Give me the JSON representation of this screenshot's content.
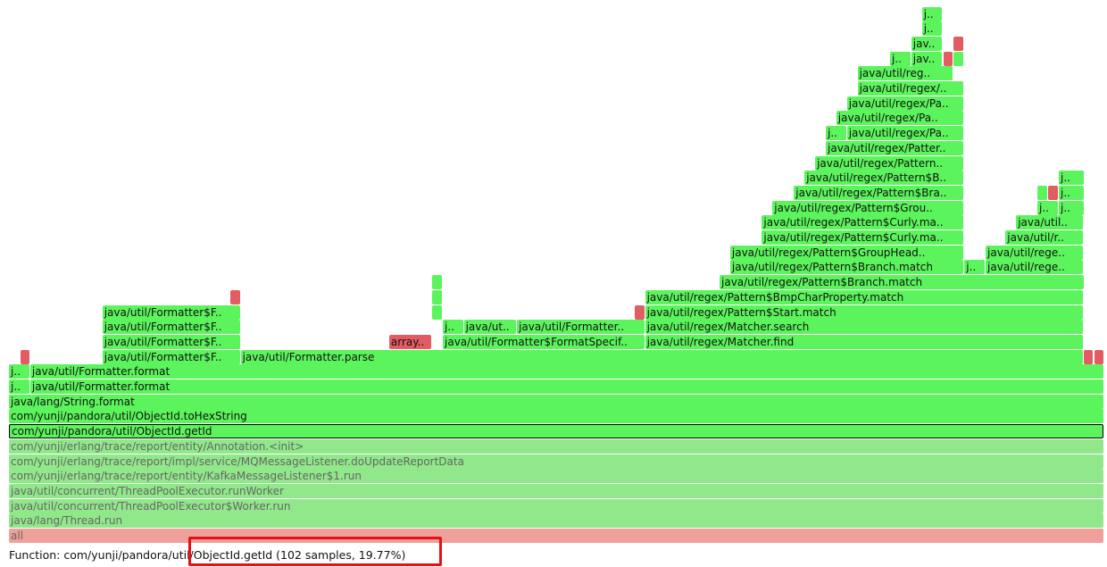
{
  "palette": {
    "green": "#5cf45c",
    "red": "#e35b63",
    "light_green": "#90e88a",
    "salmon": "#f0a09a",
    "dim_text": "#666666",
    "highlight_border": "#e81010"
  },
  "frames": [
    {
      "label": "all",
      "depth": 0,
      "start": 0.0,
      "end": 1.0,
      "color": "salmon",
      "dim": true
    },
    {
      "label": "java/lang/Thread.run",
      "depth": 1,
      "start": 0.0,
      "end": 1.0,
      "color": "light_green",
      "dim": true
    },
    {
      "label": "java/util/concurrent/ThreadPoolExecutor$Worker.run",
      "depth": 2,
      "start": 0.0,
      "end": 1.0,
      "color": "light_green",
      "dim": true
    },
    {
      "label": "java/util/concurrent/ThreadPoolExecutor.runWorker",
      "depth": 3,
      "start": 0.0,
      "end": 1.0,
      "color": "light_green",
      "dim": true
    },
    {
      "label": "com/yunji/erlang/trace/report/entity/KafkaMessageListener$1.run",
      "depth": 4,
      "start": 0.0,
      "end": 1.0,
      "color": "light_green",
      "dim": true
    },
    {
      "label": "com/yunji/erlang/trace/report/impl/service/MQMessageListener.doUpdateReportData",
      "depth": 5,
      "start": 0.0,
      "end": 1.0,
      "color": "light_green",
      "dim": true
    },
    {
      "label": "com/yunji/erlang/trace/report/entity/Annotation.<init>",
      "depth": 6,
      "start": 0.0,
      "end": 1.0,
      "color": "light_green",
      "dim": true
    },
    {
      "label": "com/yunji/pandora/util/ObjectId.getId",
      "depth": 7,
      "start": 0.0,
      "end": 1.0,
      "color": "green",
      "selected": true
    },
    {
      "label": "com/yunji/pandora/util/ObjectId.toHexString",
      "depth": 8,
      "start": 0.0,
      "end": 1.0,
      "color": "green"
    },
    {
      "label": "java/lang/String.format",
      "depth": 9,
      "start": 0.0,
      "end": 1.0,
      "color": "green"
    },
    {
      "label": "j..",
      "depth": 10,
      "start": 0.0,
      "end": 0.0195,
      "color": "green"
    },
    {
      "label": "java/util/Formatter.format",
      "depth": 10,
      "start": 0.0195,
      "end": 1.0,
      "color": "green"
    },
    {
      "label": "j..",
      "depth": 11,
      "start": 0.0,
      "end": 0.0195,
      "color": "green"
    },
    {
      "label": "java/util/Formatter.format",
      "depth": 11,
      "start": 0.0195,
      "end": 1.0,
      "color": "green"
    },
    {
      "label": "",
      "depth": 12,
      "start": 0.0105,
      "end": 0.0195,
      "color": "red"
    },
    {
      "label": "java/util/Formatter$F..",
      "depth": 12,
      "start": 0.0853,
      "end": 0.2116,
      "color": "green"
    },
    {
      "label": "java/util/Formatter.parse",
      "depth": 12,
      "start": 0.2116,
      "end": 0.9816,
      "color": "green"
    },
    {
      "label": "",
      "depth": 12,
      "start": 0.9816,
      "end": 0.9906,
      "color": "red"
    },
    {
      "label": "",
      "depth": 12,
      "start": 0.9906,
      "end": 1.0,
      "color": "red"
    },
    {
      "label": "java/util/Formatter$F..",
      "depth": 13,
      "start": 0.0853,
      "end": 0.2116,
      "color": "green"
    },
    {
      "label": "array..",
      "depth": 13,
      "start": 0.3471,
      "end": 0.3864,
      "color": "red"
    },
    {
      "label": "java/util/Formatter$FormatSpecif..",
      "depth": 13,
      "start": 0.3961,
      "end": 0.5808,
      "color": "green"
    },
    {
      "label": "java/util/regex/Matcher.find",
      "depth": 13,
      "start": 0.5808,
      "end": 0.9816,
      "color": "green"
    },
    {
      "label": "java/util/Formatter$F..",
      "depth": 14,
      "start": 0.0853,
      "end": 0.2116,
      "color": "green"
    },
    {
      "label": "j..",
      "depth": 14,
      "start": 0.3961,
      "end": 0.4153,
      "color": "green"
    },
    {
      "label": "java/ut..",
      "depth": 14,
      "start": 0.4153,
      "end": 0.4638,
      "color": "green"
    },
    {
      "label": "java/util/Formatter..",
      "depth": 14,
      "start": 0.4638,
      "end": 0.5808,
      "color": "green"
    },
    {
      "label": "java/util/regex/Matcher.search",
      "depth": 14,
      "start": 0.5808,
      "end": 0.9816,
      "color": "green"
    },
    {
      "label": "java/util/Formatter$F..",
      "depth": 15,
      "start": 0.0853,
      "end": 0.2116,
      "color": "green"
    },
    {
      "label": "",
      "depth": 15,
      "start": 0.3864,
      "end": 0.3961,
      "color": "green"
    },
    {
      "label": "",
      "depth": 15,
      "start": 0.5711,
      "end": 0.5808,
      "color": "red"
    },
    {
      "label": "java/util/regex/Pattern$Start.match",
      "depth": 15,
      "start": 0.5808,
      "end": 0.9816,
      "color": "green"
    },
    {
      "label": "",
      "depth": 16,
      "start": 0.2019,
      "end": 0.2116,
      "color": "red"
    },
    {
      "label": "",
      "depth": 16,
      "start": 0.3864,
      "end": 0.3961,
      "color": "green"
    },
    {
      "label": "java/util/regex/Pattern$BmpCharProperty.match",
      "depth": 16,
      "start": 0.5808,
      "end": 0.9816,
      "color": "green"
    },
    {
      "label": "",
      "depth": 17,
      "start": 0.3864,
      "end": 0.3961,
      "color": "green"
    },
    {
      "label": "java/util/regex/Pattern$Branch.match",
      "depth": 17,
      "start": 0.6487,
      "end": 0.9816,
      "color": "green"
    },
    {
      "label": "java/util/regex/Pattern$Branch.match",
      "depth": 18,
      "start": 0.6584,
      "end": 0.8723,
      "color": "green"
    },
    {
      "label": "j..",
      "depth": 18,
      "start": 0.8723,
      "end": 0.8916,
      "color": "green"
    },
    {
      "label": "java/util/rege..",
      "depth": 18,
      "start": 0.8916,
      "end": 0.9816,
      "color": "green"
    },
    {
      "label": "java/util/regex/Pattern$GroupHead..",
      "depth": 19,
      "start": 0.6584,
      "end": 0.8723,
      "color": "green"
    },
    {
      "label": "java/util/rege..",
      "depth": 19,
      "start": 0.8916,
      "end": 0.9816,
      "color": "green"
    },
    {
      "label": "java/util/regex/Pattern$Curly.ma..",
      "depth": 20,
      "start": 0.6874,
      "end": 0.8723,
      "color": "green"
    },
    {
      "label": "java/util/r..",
      "depth": 20,
      "start": 0.9098,
      "end": 0.9816,
      "color": "green"
    },
    {
      "label": "java/util/regex/Pattern$Curly.ma..",
      "depth": 21,
      "start": 0.6874,
      "end": 0.8723,
      "color": "green"
    },
    {
      "label": "java/util..",
      "depth": 21,
      "start": 0.9195,
      "end": 0.9816,
      "color": "green"
    },
    {
      "label": "java/util/regex/Pattern$Grou..",
      "depth": 22,
      "start": 0.6971,
      "end": 0.8723,
      "color": "green"
    },
    {
      "label": "j..",
      "depth": 22,
      "start": 0.9389,
      "end": 0.9584,
      "color": "green"
    },
    {
      "label": "j..",
      "depth": 22,
      "start": 0.9584,
      "end": 0.9816,
      "color": "green"
    },
    {
      "label": "java/util/regex/Pattern$Bra..",
      "depth": 23,
      "start": 0.7166,
      "end": 0.8723,
      "color": "green"
    },
    {
      "label": "",
      "depth": 23,
      "start": 0.9389,
      "end": 0.9486,
      "color": "green"
    },
    {
      "label": "",
      "depth": 23,
      "start": 0.9486,
      "end": 0.9584,
      "color": "red"
    },
    {
      "label": "j..",
      "depth": 23,
      "start": 0.9584,
      "end": 0.9816,
      "color": "green"
    },
    {
      "label": "java/util/regex/Pattern$B..",
      "depth": 24,
      "start": 0.7263,
      "end": 0.8723,
      "color": "green"
    },
    {
      "label": "j..",
      "depth": 24,
      "start": 0.9584,
      "end": 0.9816,
      "color": "green"
    },
    {
      "label": "java/util/regex/Pattern..",
      "depth": 25,
      "start": 0.736,
      "end": 0.8723,
      "color": "green"
    },
    {
      "label": "java/util/regex/Patter..",
      "depth": 26,
      "start": 0.7457,
      "end": 0.8723,
      "color": "green"
    },
    {
      "label": "j..",
      "depth": 27,
      "start": 0.7457,
      "end": 0.765,
      "color": "green"
    },
    {
      "label": "java/util/regex/Pa..",
      "depth": 27,
      "start": 0.765,
      "end": 0.8723,
      "color": "green"
    },
    {
      "label": "java/util/regex/Pa..",
      "depth": 28,
      "start": 0.7553,
      "end": 0.8723,
      "color": "green"
    },
    {
      "label": "java/util/regex/Pa..",
      "depth": 29,
      "start": 0.765,
      "end": 0.8723,
      "color": "green"
    },
    {
      "label": "java/util/regex/..",
      "depth": 30,
      "start": 0.7747,
      "end": 0.8723,
      "color": "green"
    },
    {
      "label": "java/util/reg..",
      "depth": 31,
      "start": 0.7747,
      "end": 0.8626,
      "color": "green"
    },
    {
      "label": "j..",
      "depth": 32,
      "start": 0.8044,
      "end": 0.8238,
      "color": "green"
    },
    {
      "label": "jav..",
      "depth": 32,
      "start": 0.8238,
      "end": 0.8529,
      "color": "green"
    },
    {
      "label": "",
      "depth": 32,
      "start": 0.8529,
      "end": 0.8626,
      "color": "red"
    },
    {
      "label": "",
      "depth": 32,
      "start": 0.8626,
      "end": 0.8723,
      "color": "green"
    },
    {
      "label": "jav..",
      "depth": 33,
      "start": 0.8238,
      "end": 0.8529,
      "color": "green"
    },
    {
      "label": "",
      "depth": 33,
      "start": 0.8626,
      "end": 0.8723,
      "color": "red"
    },
    {
      "label": "j..",
      "depth": 34,
      "start": 0.8335,
      "end": 0.8529,
      "color": "green"
    },
    {
      "label": "j..",
      "depth": 35,
      "start": 0.8335,
      "end": 0.8529,
      "color": "green"
    }
  ],
  "status": {
    "text": "Function: com/yunji/pandora/util/ObjectId.getId (102 samples, 19.77%)"
  }
}
